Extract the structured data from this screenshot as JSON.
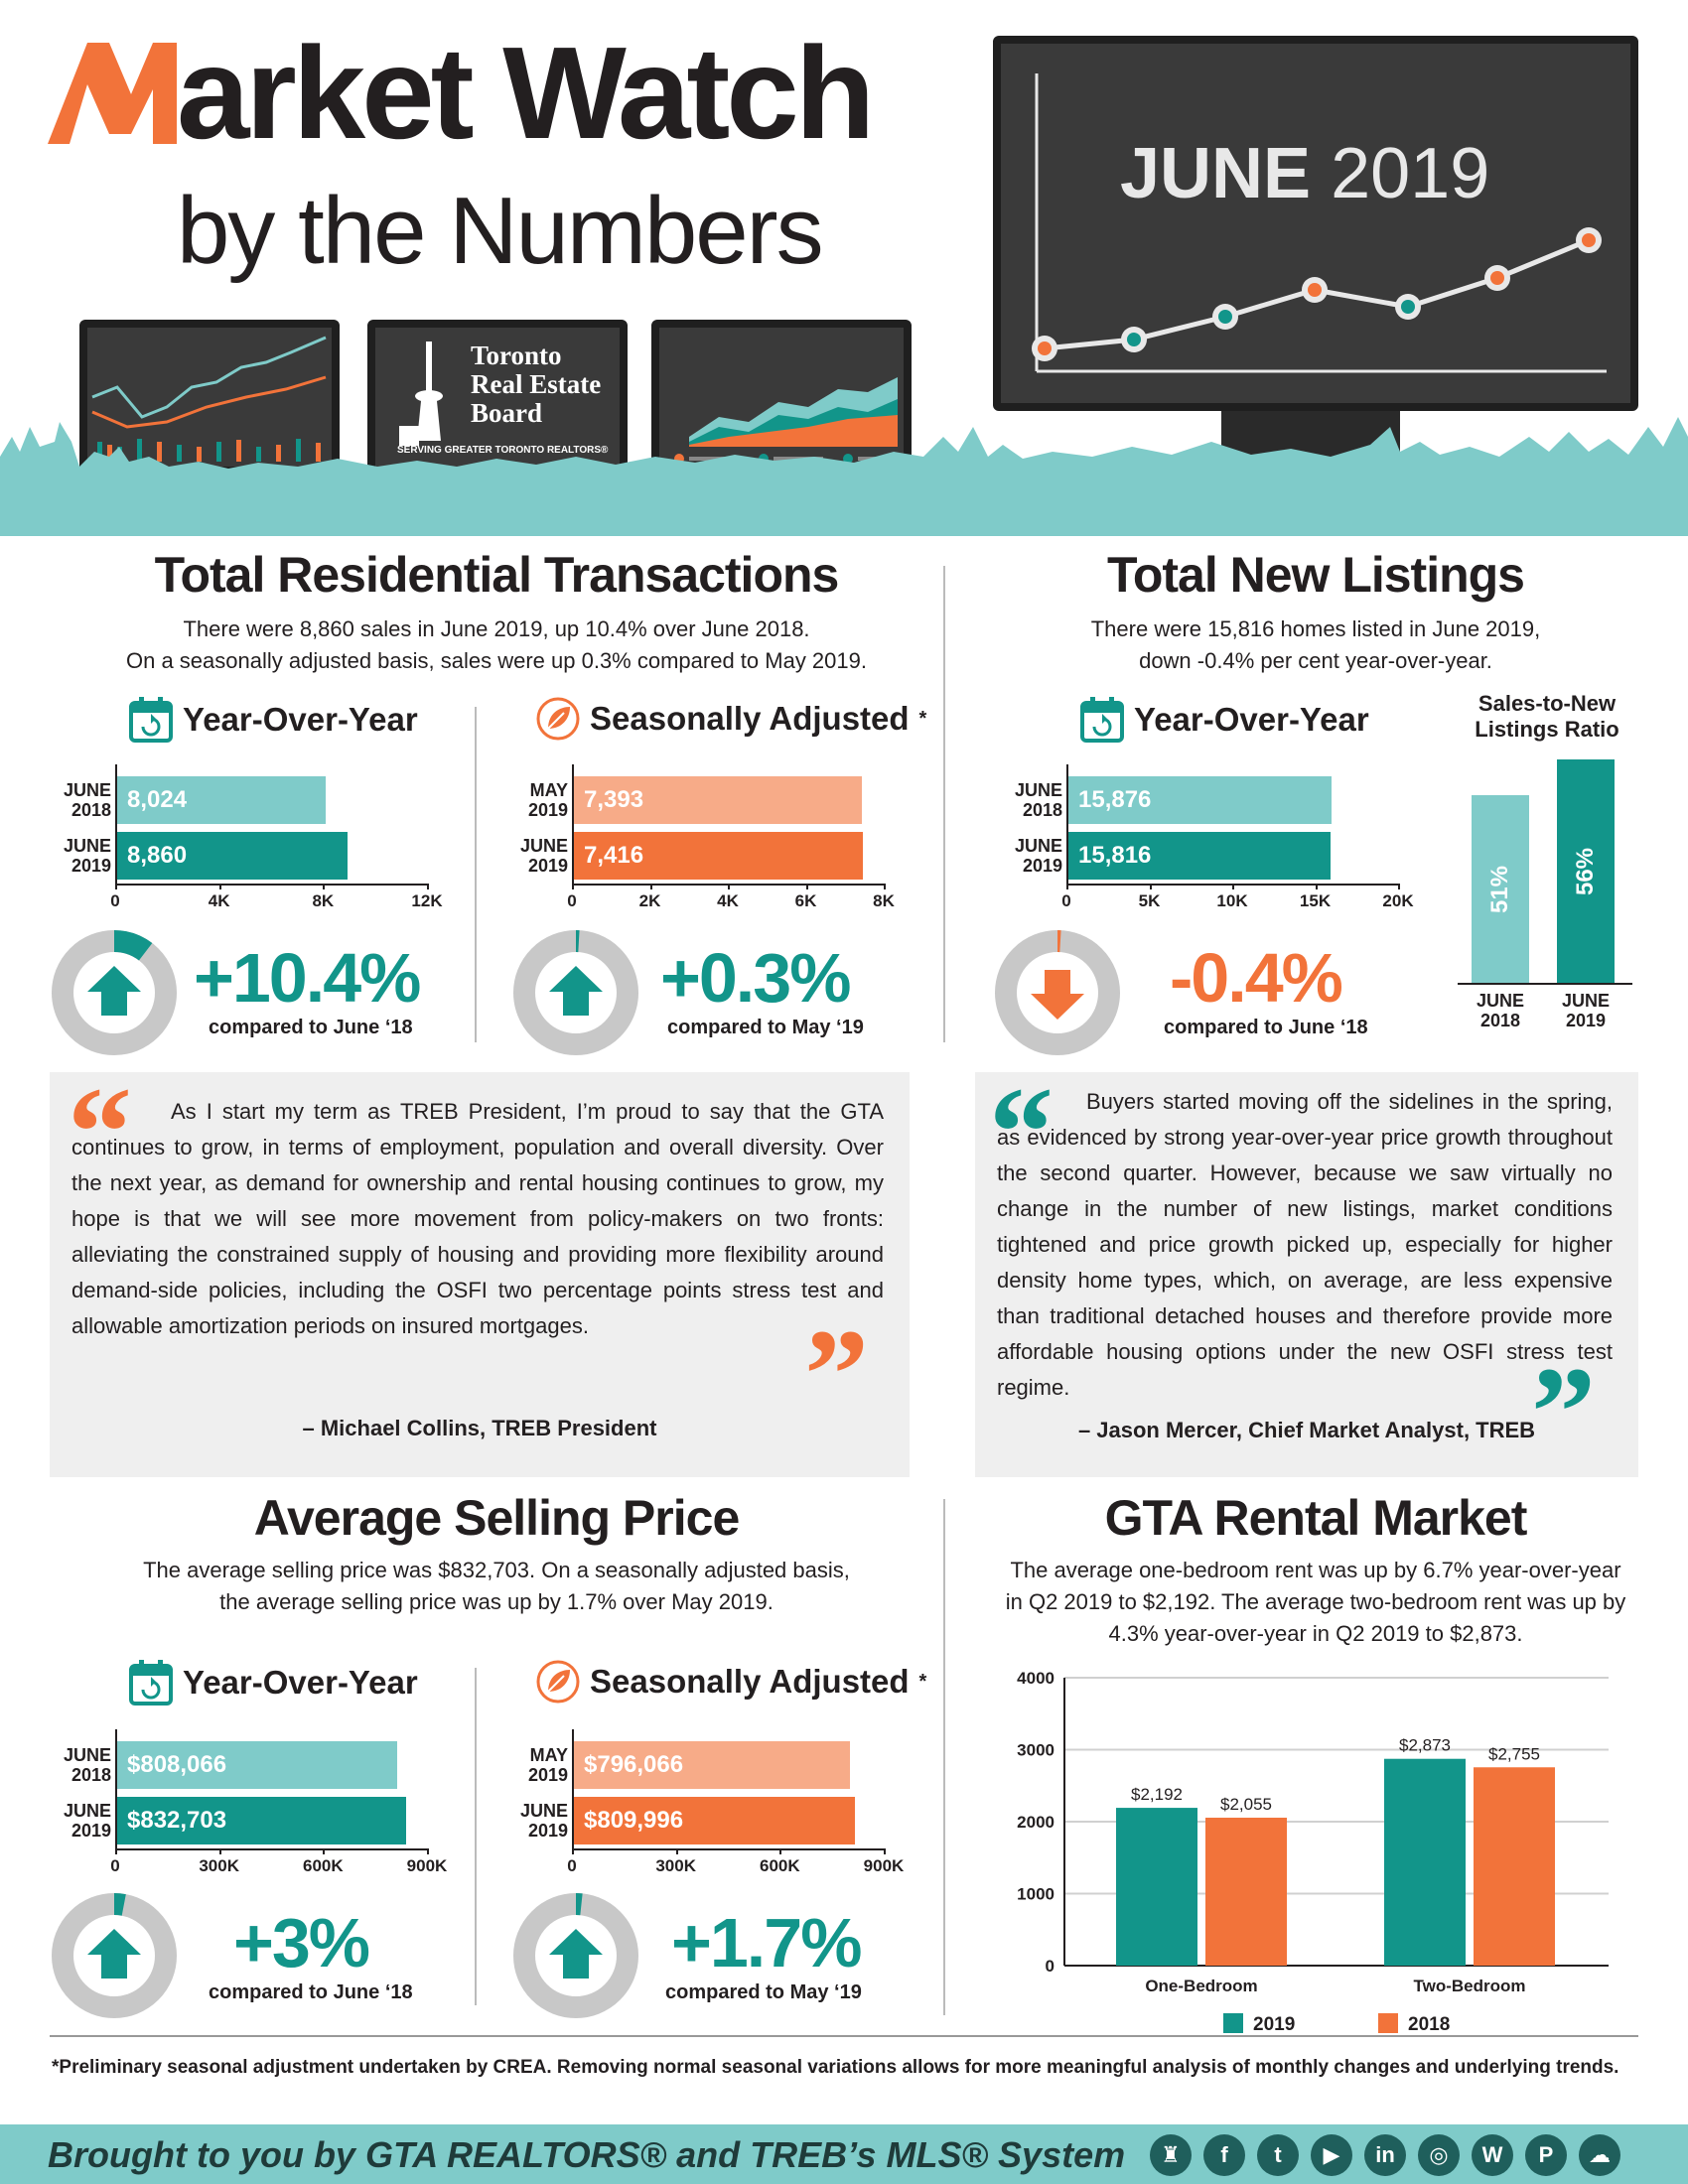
{
  "header": {
    "title_rest": "arket Watch",
    "subtitle": "by the Numbers",
    "month": "JUNE",
    "year": "2019",
    "logo_lines": [
      "Toronto",
      "Real Estate",
      "Board"
    ],
    "logo_tagline": "SERVING GREATER TORONTO REALTORS®"
  },
  "colors": {
    "teal": "#12958a",
    "light_teal": "#7fcbc9",
    "orange": "#f2733a",
    "light_orange": "#f7ab88",
    "gray": "#c8c8c8"
  },
  "transactions": {
    "title": "Total Residential Transactions",
    "desc_line1": "There were 8,860 sales in June 2019, up 10.4% over June 2018.",
    "desc_line2": "On a seasonally adjusted basis, sales were up 0.3% compared to May 2019.",
    "yoy": {
      "heading": "Year-Over-Year",
      "pct": "+10.4%",
      "compare": "compared to June ‘18"
    },
    "sa": {
      "heading": "Seasonally Adjusted",
      "asterisk": "*",
      "pct": "+0.3%",
      "compare": "compared to May ‘19"
    }
  },
  "listings": {
    "title": "Total New Listings",
    "desc_line1": "There were 15,816 homes listed in June 2019,",
    "desc_line2": "down -0.4% per cent year-over-year.",
    "yoy": {
      "heading": "Year-Over-Year",
      "pct": "-0.4%",
      "compare": "compared to June ‘18"
    },
    "ratio_title_1": "Sales-to-New",
    "ratio_title_2": "Listings Ratio"
  },
  "quote_left": {
    "text": "As I start my term as TREB President, I’m proud to say that the GTA continues to grow, in terms of employment, population and overall diversity. Over the next year, as demand for ownership and rental housing continues to grow, my hope is that we will see more movement from policy-makers on two fronts: alleviating the constrained supply of housing and providing more flexibility around demand-side policies, including the OSFI two percentage points stress test and allowable amortization periods on insured mortgages.",
    "author": "– Michael Collins, TREB President"
  },
  "quote_right": {
    "text": "Buyers started moving off the sidelines in the spring, as evidenced by strong year-over-year price growth throughout the second quarter. However, because we saw virtually no change in the number of new listings, market conditions tightened and price growth picked up, especially for higher density home types, which, on average, are less expensive than traditional detached houses and therefore provide more affordable housing options under the new OSFI stress test regime.",
    "author": "– Jason Mercer, Chief Market Analyst, TREB"
  },
  "price": {
    "title": "Average Selling Price",
    "desc_line1": "The average selling price was $832,703. On a seasonally adjusted basis,",
    "desc_line2": "the average selling price was up by 1.7% over May 2019.",
    "yoy": {
      "heading": "Year-Over-Year",
      "pct": "+3%",
      "compare": "compared to June ‘18"
    },
    "sa": {
      "heading": "Seasonally Adjusted",
      "asterisk": "*",
      "pct": "+1.7%",
      "compare": "compared to  May ‘19"
    }
  },
  "rental": {
    "title": "GTA Rental Market",
    "desc_line1": "The average one-bedroom rent was up by 6.7% year-over-year",
    "desc_line2": "in Q2 2019 to $2,192. The average two-bedroom rent was up by",
    "desc_line3": "4.3% year-over-year in Q2 2019 to $2,873."
  },
  "chart_data": [
    {
      "id": "transactions_yoy",
      "type": "bar",
      "orientation": "horizontal",
      "categories": [
        "JUNE 2018",
        "JUNE 2019"
      ],
      "values": [
        8024,
        8860
      ],
      "value_labels": [
        "8,024",
        "8,860"
      ],
      "xlim": [
        0,
        12000
      ],
      "ticks": [
        "0",
        "4K",
        "8K",
        "12K"
      ],
      "tick_values": [
        0,
        4000,
        8000,
        12000
      ]
    },
    {
      "id": "transactions_sa",
      "type": "bar",
      "orientation": "horizontal",
      "categories": [
        "MAY 2019",
        "JUNE 2019"
      ],
      "values": [
        7393,
        7416
      ],
      "value_labels": [
        "7,393",
        "7,416"
      ],
      "xlim": [
        0,
        8000
      ],
      "ticks": [
        "0",
        "2K",
        "4K",
        "6K",
        "8K"
      ],
      "tick_values": [
        0,
        2000,
        4000,
        6000,
        8000
      ]
    },
    {
      "id": "listings_yoy",
      "type": "bar",
      "orientation": "horizontal",
      "categories": [
        "JUNE 2018",
        "JUNE 2019"
      ],
      "values": [
        15876,
        15816
      ],
      "value_labels": [
        "15,876",
        "15,816"
      ],
      "xlim": [
        0,
        20000
      ],
      "ticks": [
        "0",
        "5K",
        "10K",
        "15K",
        "20K"
      ],
      "tick_values": [
        0,
        5000,
        10000,
        15000,
        20000
      ]
    },
    {
      "id": "sales_to_new_listings_ratio",
      "type": "bar",
      "orientation": "vertical",
      "categories": [
        "JUNE 2018",
        "JUNE 2019"
      ],
      "values": [
        51,
        56
      ],
      "value_labels": [
        "51%",
        "56%"
      ]
    },
    {
      "id": "price_yoy",
      "type": "bar",
      "orientation": "horizontal",
      "categories": [
        "JUNE 2018",
        "JUNE 2019"
      ],
      "values": [
        808066,
        832703
      ],
      "value_labels": [
        "$808,066",
        "$832,703"
      ],
      "xlim": [
        0,
        900000
      ],
      "ticks": [
        "0",
        "300K",
        "600K",
        "900K"
      ],
      "tick_values": [
        0,
        300000,
        600000,
        900000
      ]
    },
    {
      "id": "price_sa",
      "type": "bar",
      "orientation": "horizontal",
      "categories": [
        "MAY 2019",
        "JUNE 2019"
      ],
      "values": [
        796066,
        809996
      ],
      "value_labels": [
        "$796,066",
        "$809,996"
      ],
      "xlim": [
        0,
        900000
      ],
      "ticks": [
        "0",
        "300K",
        "600K",
        "900K"
      ],
      "tick_values": [
        0,
        300000,
        600000,
        900000
      ]
    },
    {
      "id": "rental",
      "type": "bar",
      "orientation": "vertical",
      "categories": [
        "One-Bedroom",
        "Two-Bedroom"
      ],
      "series": [
        {
          "name": "2019",
          "values": [
            2192,
            2873
          ],
          "value_labels": [
            "$2,192",
            "$2,873"
          ]
        },
        {
          "name": "2018",
          "values": [
            2055,
            2755
          ],
          "value_labels": [
            "$2,055",
            "$2,755"
          ]
        }
      ],
      "ylim": [
        0,
        4000
      ],
      "yticks": [
        "0",
        "1000",
        "2000",
        "3000",
        "4000"
      ],
      "grid": true,
      "legend": "bottom"
    }
  ],
  "gauges": {
    "transactions_yoy": 0.104,
    "transactions_sa": 0.003,
    "listings_yoy": 0.004,
    "price_yoy": 0.03,
    "price_sa": 0.017
  },
  "footnote": "*Preliminary seasonal adjustment undertaken by CREA. Removing normal seasonal variations allows for more meaningful analysis of monthly changes and underlying trends.",
  "footer": {
    "text": "Brought to you by GTA REALTORS® and TREB’s MLS® System",
    "social_icons": [
      "tower-icon",
      "facebook-icon",
      "twitter-icon",
      "youtube-icon",
      "linkedin-icon",
      "instagram-icon",
      "wordpress-icon",
      "pinterest-icon",
      "cloud-icon"
    ],
    "social_glyphs": [
      "♜",
      "f",
      "t",
      "▶",
      "in",
      "◎",
      "W",
      "P",
      "☁"
    ]
  }
}
